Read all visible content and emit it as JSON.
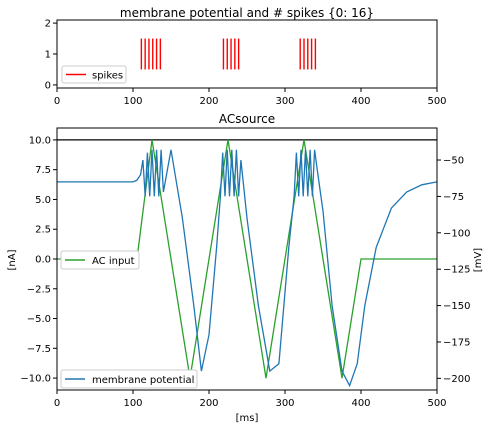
{
  "chart_data": [
    {
      "type": "event-raster",
      "title": "membrane potential and # spikes {0: 16}",
      "xlim": [
        0,
        500
      ],
      "ylim": [
        -0.1,
        2.1
      ],
      "xticks": [
        "0",
        "100",
        "200",
        "300",
        "400",
        "500"
      ],
      "yticks": [
        "0",
        "1",
        "2"
      ],
      "legend": {
        "placement": "lower-left",
        "entries": [
          "spikes"
        ]
      },
      "series": [
        {
          "name": "spikes",
          "color": "#ff0000",
          "y_range": [
            0.5,
            1.5
          ],
          "x": [
            111,
            116,
            121,
            126,
            131,
            136,
            219,
            224,
            229,
            234,
            239,
            320,
            325,
            330,
            335,
            340
          ]
        }
      ]
    },
    {
      "type": "line",
      "title": "ACsource",
      "xlabel": "[ms]",
      "ylabel_left": "[nA]",
      "ylabel_right": "[mV]",
      "xlim": [
        0,
        500
      ],
      "ylim_left": [
        -11,
        11
      ],
      "ylim_right": [
        -208,
        -28
      ],
      "xticks": [
        "0",
        "100",
        "200",
        "300",
        "400",
        "500"
      ],
      "yticks_left": [
        "10.0",
        "7.5",
        "5.0",
        "2.5",
        "0.0",
        "−2.5",
        "−5.0",
        "−7.5",
        "−10.0"
      ],
      "yticks_right": [
        "−50",
        "−75",
        "−100",
        "−125",
        "−150",
        "−175",
        "−200"
      ],
      "legends": [
        {
          "placement": "center-left",
          "entries": [
            "AC input"
          ]
        },
        {
          "placement": "lower-left",
          "entries": [
            "membrane potential"
          ]
        }
      ],
      "series": [
        {
          "name": "AC input",
          "axis": "left",
          "color": "#2ca02c",
          "x": [
            0,
            100,
            105,
            125,
            150,
            175,
            200,
            225,
            250,
            275,
            300,
            325,
            350,
            375,
            400,
            500
          ],
          "y": [
            0,
            0,
            -0.1,
            10,
            0,
            -10,
            0,
            10,
            0,
            -10,
            0,
            10,
            0,
            -10,
            0,
            0
          ]
        },
        {
          "name": "membrane potential",
          "axis": "right",
          "color": "#1f77b4",
          "x": [
            0,
            100,
            105,
            110,
            113,
            116,
            119,
            122,
            125,
            128,
            131,
            134,
            137,
            140,
            150,
            165,
            180,
            190,
            200,
            210,
            215,
            218,
            221,
            224,
            227,
            230,
            233,
            236,
            239,
            242,
            250,
            265,
            280,
            292,
            305,
            312,
            315,
            318,
            321,
            324,
            327,
            330,
            333,
            336,
            339,
            342,
            350,
            362,
            375,
            385,
            395,
            405,
            420,
            440,
            460,
            480,
            500
          ],
          "y": [
            -65,
            -65,
            -64,
            -60,
            -50,
            -75,
            -45,
            -75,
            -43,
            -75,
            -43,
            -75,
            -43,
            -72,
            -43,
            -90,
            -150,
            -195,
            -170,
            -110,
            -75,
            -45,
            -75,
            -43,
            -75,
            -43,
            -75,
            -43,
            -75,
            -50,
            -90,
            -150,
            -195,
            -190,
            -110,
            -75,
            -45,
            -75,
            -43,
            -75,
            -43,
            -75,
            -43,
            -75,
            -43,
            -55,
            -85,
            -150,
            -195,
            -205,
            -190,
            -150,
            -110,
            -83,
            -72,
            -67,
            -65
          ]
        }
      ],
      "hline": {
        "value_left": 10,
        "color": "#000000"
      }
    }
  ]
}
